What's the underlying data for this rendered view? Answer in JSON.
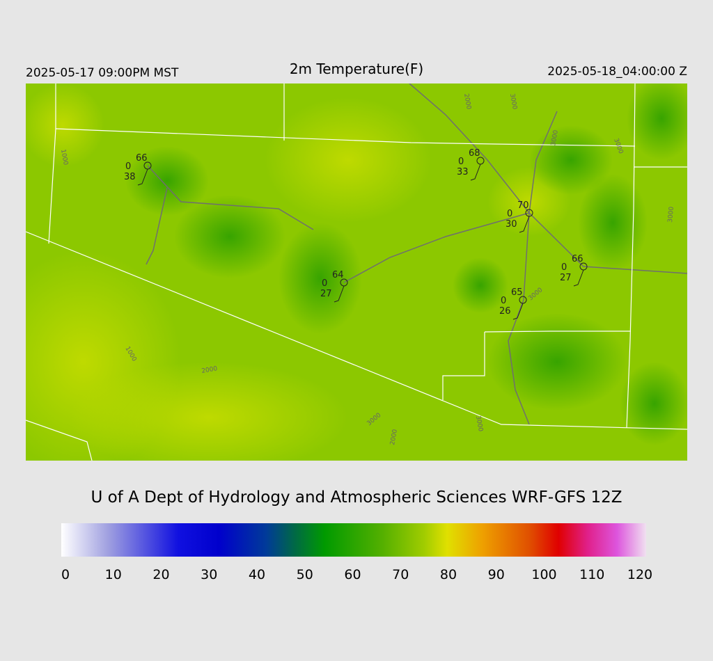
{
  "header": {
    "local_time": "2025-05-17 09:00PM MST",
    "title": "2m Temperature(F)",
    "utc_time": "2025-05-18_04:00:00 Z"
  },
  "stations": [
    {
      "temperature": 66,
      "cloud_cover": 0,
      "dewpoint": 38
    },
    {
      "temperature": 68,
      "cloud_cover": 0,
      "dewpoint": 33
    },
    {
      "temperature": 70,
      "cloud_cover": 0,
      "dewpoint": 30
    },
    {
      "temperature": 66,
      "cloud_cover": 0,
      "dewpoint": 27
    },
    {
      "temperature": 64,
      "cloud_cover": 0,
      "dewpoint": 27
    },
    {
      "temperature": 65,
      "cloud_cover": 0,
      "dewpoint": 26
    }
  ],
  "contour_labels": [
    "1000",
    "1000",
    "2000",
    "2000",
    "3000",
    "3000",
    "3000",
    "3000",
    "3000",
    "3000",
    "2000",
    "3000"
  ],
  "credit": "U of A Dept of Hydrology and Atmospheric Sciences WRF-GFS 12Z",
  "colorbar": {
    "ticks": [
      0,
      10,
      20,
      30,
      40,
      50,
      60,
      70,
      80,
      90,
      100,
      110,
      120
    ]
  }
}
